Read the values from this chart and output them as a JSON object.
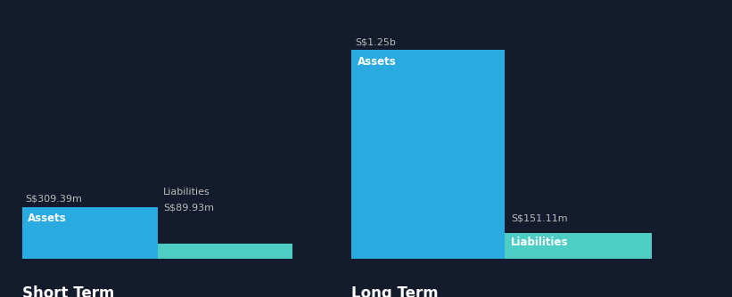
{
  "background_color": "#141B2D",
  "short_term": {
    "assets_value": 309.39,
    "liabilities_value": 89.93,
    "assets_label": "S$309.39m",
    "liabilities_label": "S$89.93m",
    "assets_color": "#29ABE2",
    "liabilities_color": "#4ECDC4",
    "bar_label_assets": "Assets",
    "bar_label_liabilities": "Liabilities",
    "title": "Short Term"
  },
  "long_term": {
    "assets_value": 1250,
    "liabilities_value": 151.11,
    "assets_label": "S$1.25b",
    "liabilities_label": "S$151.11m",
    "assets_color": "#29ABE2",
    "liabilities_color": "#4ECDC4",
    "bar_label_assets": "Assets",
    "bar_label_liabilities": "Liabilities",
    "title": "Long Term"
  },
  "text_color": "#FFFFFF",
  "label_color_outside": "#BBBBBB",
  "title_fontsize": 12,
  "bar_label_fontsize": 8.5,
  "value_label_fontsize": 8,
  "baseline_color": "#444466"
}
